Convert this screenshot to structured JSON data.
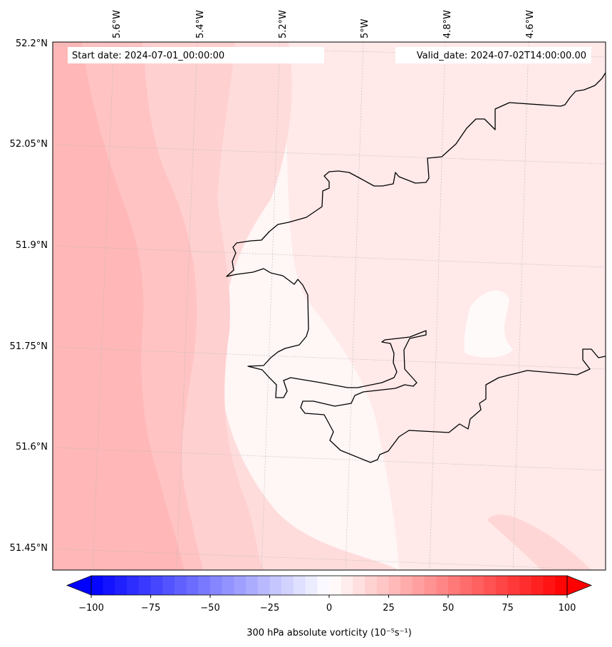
{
  "header": {
    "start_date": "Start date: 2024-07-01_00:00:00",
    "valid_date": "Valid_date: 2024-07-02T14:00:00.00"
  },
  "map": {
    "lon_labels": [
      "5.6°W",
      "5.4°W",
      "5.2°W",
      "5°W",
      "4.8°W",
      "4.6°W"
    ],
    "lat_labels": [
      "52.2°N",
      "52.05°N",
      "51.9°N",
      "51.75°N",
      "51.6°N",
      "51.45°N"
    ],
    "colors": {
      "coast": "#000000",
      "grid": "#bbbbbb",
      "fill_levels": [
        "#ffb7b7",
        "#ffc3c3",
        "#ffd0d0",
        "#ffdcdc",
        "#ffe9e9",
        "#fff6f6"
      ]
    }
  },
  "colorbar": {
    "label": "300 hPa absolute vorticity (10⁻⁵s⁻¹)",
    "ticks": [
      "−100",
      "−75",
      "−50",
      "−25",
      "0",
      "25",
      "50",
      "75",
      "100"
    ],
    "range": [
      -100,
      100
    ],
    "colors": {
      "min": "#0000ff",
      "mid": "#ffffff",
      "max": "#ff0000"
    },
    "extend": "both"
  }
}
